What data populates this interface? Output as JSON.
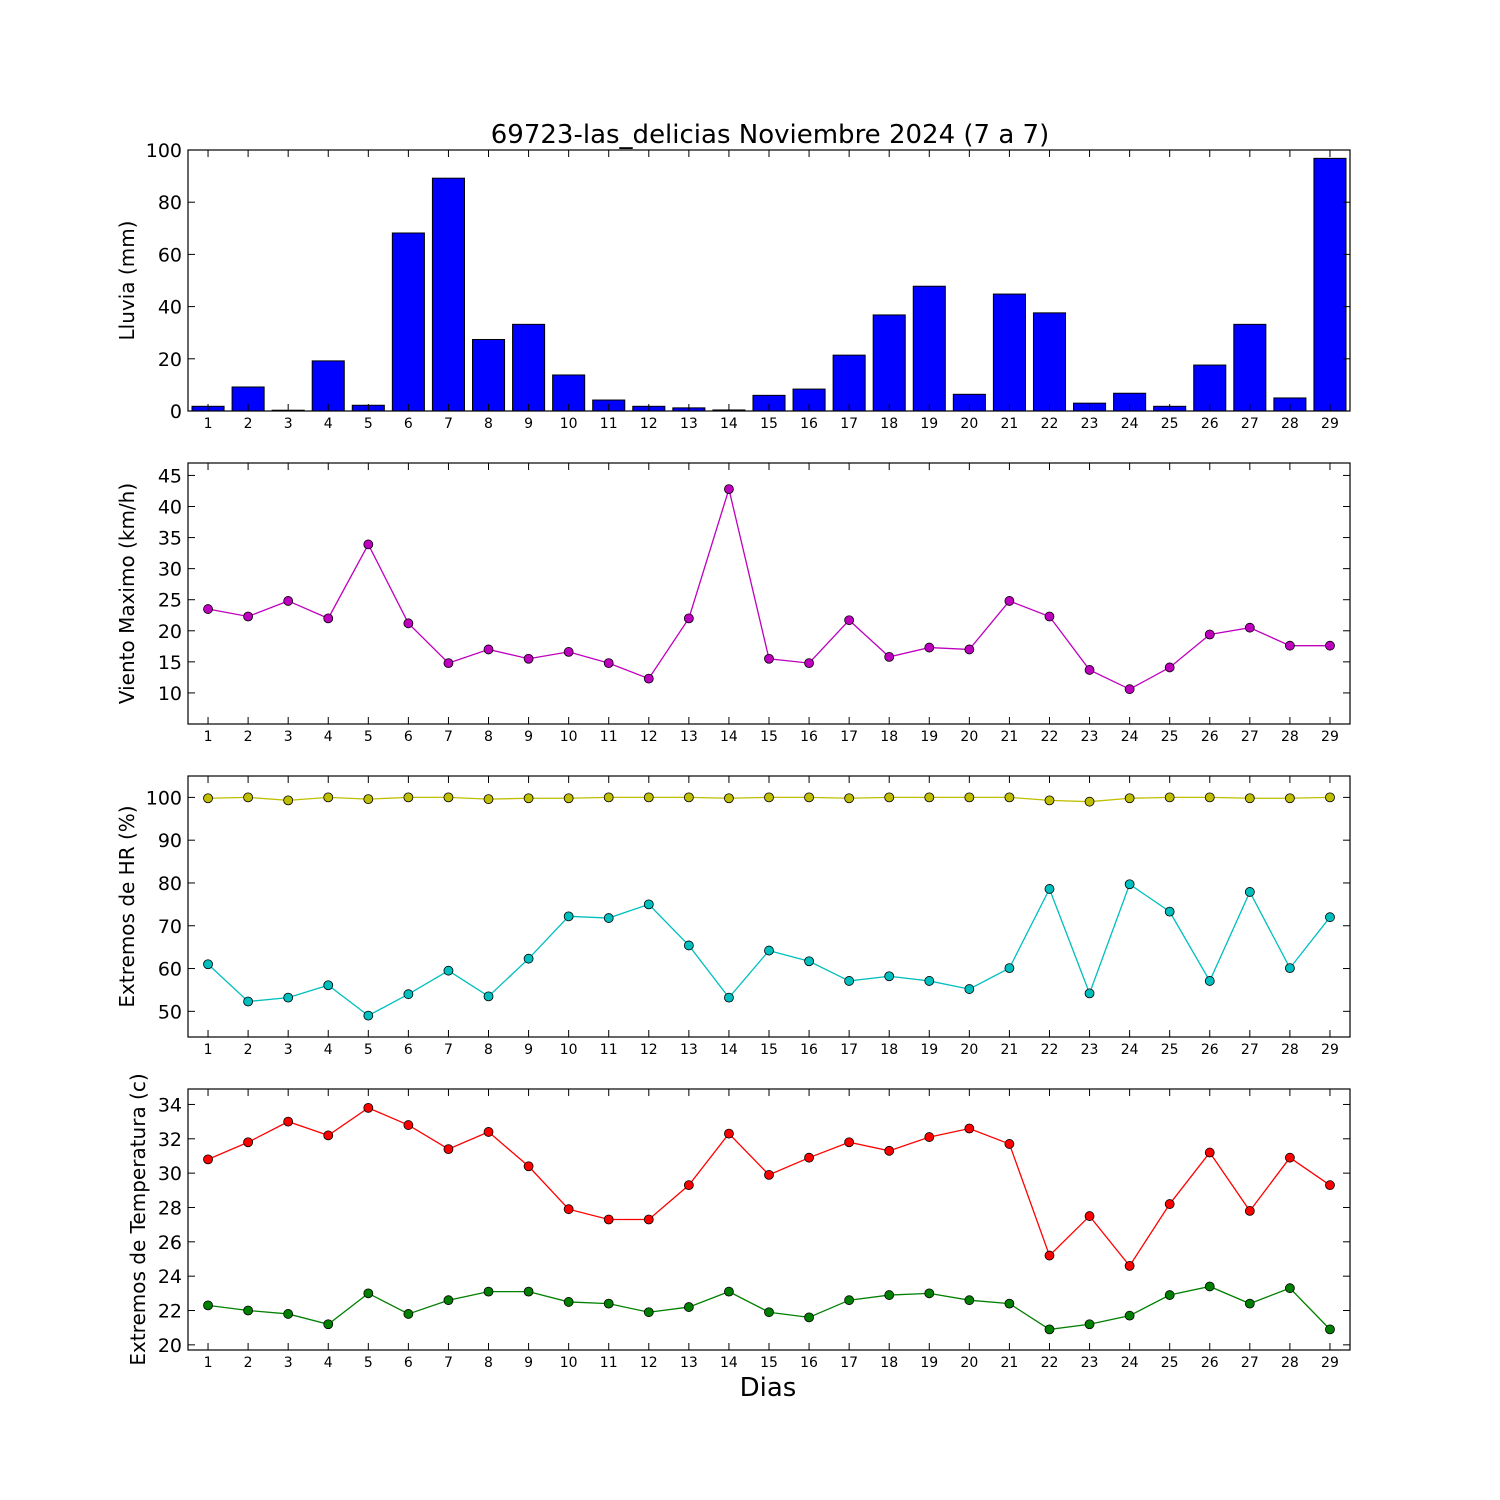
{
  "title": "69723-las_delicias Noviembre 2024  (7 a 7)",
  "xlabel": "Dias",
  "colors": {
    "rain": "#0000ff",
    "wind": "#bf00bf",
    "hr_max": "#bfbf00",
    "hr_min": "#00bfbf",
    "temp_max": "#ff0000",
    "temp_min": "#008000"
  },
  "chart_data": [
    {
      "type": "bar",
      "ylabel": "Lluvia (mm)",
      "categories": [
        "1",
        "2",
        "3",
        "4",
        "5",
        "6",
        "7",
        "8",
        "9",
        "10",
        "11",
        "12",
        "13",
        "14",
        "15",
        "16",
        "17",
        "18",
        "19",
        "20",
        "21",
        "22",
        "23",
        "24",
        "25",
        "26",
        "27",
        "28",
        "29"
      ],
      "yticks": [
        0,
        20,
        40,
        60,
        80,
        100
      ],
      "ylim": [
        0,
        100
      ],
      "xlim": [
        0.5,
        29.5
      ],
      "series": [
        {
          "values": [
            1.8,
            9.2,
            0.3,
            19.2,
            2.2,
            68.2,
            89.2,
            27.4,
            33.2,
            13.8,
            4.2,
            1.8,
            1.2,
            0.4,
            6.0,
            8.4,
            21.4,
            36.8,
            47.8,
            6.4,
            44.8,
            37.6,
            3.0,
            6.8,
            1.8,
            17.6,
            33.2,
            5.0,
            96.8
          ],
          "color": "#0000ff"
        }
      ]
    },
    {
      "type": "line",
      "ylabel": "Viento Maximo (km/h)",
      "categories": [
        "1",
        "2",
        "3",
        "4",
        "5",
        "6",
        "7",
        "8",
        "9",
        "10",
        "11",
        "12",
        "13",
        "14",
        "15",
        "16",
        "17",
        "18",
        "19",
        "20",
        "21",
        "22",
        "23",
        "24",
        "25",
        "26",
        "27",
        "28",
        "29"
      ],
      "yticks": [
        10,
        15,
        20,
        25,
        30,
        35,
        40,
        45
      ],
      "ylim": [
        5,
        47
      ],
      "xlim": [
        0.5,
        29.5
      ],
      "series": [
        {
          "values": [
            23.5,
            22.3,
            24.8,
            22.0,
            33.9,
            21.2,
            14.8,
            17.0,
            15.5,
            16.6,
            14.8,
            12.3,
            22.0,
            42.8,
            15.5,
            14.8,
            21.7,
            15.8,
            17.3,
            17.0,
            24.8,
            22.3,
            13.7,
            10.6,
            14.1,
            19.4,
            20.5,
            17.6,
            17.6
          ],
          "color": "#bf00bf"
        }
      ]
    },
    {
      "type": "line",
      "ylabel": "Extremos de HR (%)",
      "categories": [
        "1",
        "2",
        "3",
        "4",
        "5",
        "6",
        "7",
        "8",
        "9",
        "10",
        "11",
        "12",
        "13",
        "14",
        "15",
        "16",
        "17",
        "18",
        "19",
        "20",
        "21",
        "22",
        "23",
        "24",
        "25",
        "26",
        "27",
        "28",
        "29"
      ],
      "yticks": [
        50,
        60,
        70,
        80,
        90,
        100
      ],
      "ylim": [
        44,
        105
      ],
      "xlim": [
        0.5,
        29.5
      ],
      "series": [
        {
          "values": [
            99.8,
            100,
            99.3,
            100,
            99.6,
            100,
            100,
            99.6,
            99.8,
            99.8,
            100,
            100,
            100,
            99.8,
            100,
            100,
            99.8,
            100,
            100,
            100,
            100,
            99.3,
            99.0,
            99.8,
            100,
            100,
            99.8,
            99.8,
            100
          ],
          "color": "#bfbf00"
        },
        {
          "values": [
            61.0,
            52.3,
            53.2,
            56.1,
            49.0,
            54.0,
            59.5,
            53.5,
            62.3,
            72.2,
            71.8,
            75.0,
            65.4,
            53.2,
            64.2,
            61.7,
            57.1,
            58.2,
            57.1,
            55.2,
            60.1,
            78.6,
            54.2,
            79.7,
            73.3,
            57.1,
            77.9,
            60.1,
            72.0
          ],
          "color": "#00bfbf"
        }
      ]
    },
    {
      "type": "line",
      "ylabel": "Extremos de Temperatura (c)",
      "categories": [
        "1",
        "2",
        "3",
        "4",
        "5",
        "6",
        "7",
        "8",
        "9",
        "10",
        "11",
        "12",
        "13",
        "14",
        "15",
        "16",
        "17",
        "18",
        "19",
        "20",
        "21",
        "22",
        "23",
        "24",
        "25",
        "26",
        "27",
        "28",
        "29"
      ],
      "yticks": [
        20,
        22,
        24,
        26,
        28,
        30,
        32,
        34
      ],
      "ylim": [
        19.7,
        34.9
      ],
      "xlim": [
        0.5,
        29.5
      ],
      "series": [
        {
          "values": [
            30.8,
            31.8,
            33.0,
            32.2,
            33.8,
            32.8,
            31.4,
            32.4,
            30.4,
            27.9,
            27.3,
            27.3,
            29.3,
            32.3,
            29.9,
            30.9,
            31.8,
            31.3,
            32.1,
            32.6,
            31.7,
            25.2,
            27.5,
            24.6,
            28.2,
            31.2,
            27.8,
            30.9,
            29.3
          ],
          "color": "#ff0000"
        },
        {
          "values": [
            22.3,
            22.0,
            21.8,
            21.2,
            23.0,
            21.8,
            22.6,
            23.1,
            23.1,
            22.5,
            22.4,
            21.9,
            22.2,
            23.1,
            21.9,
            21.6,
            22.6,
            22.9,
            23.0,
            22.6,
            22.4,
            20.9,
            21.2,
            21.7,
            22.9,
            23.4,
            22.4,
            23.3,
            20.9
          ],
          "color": "#008000"
        }
      ]
    }
  ]
}
